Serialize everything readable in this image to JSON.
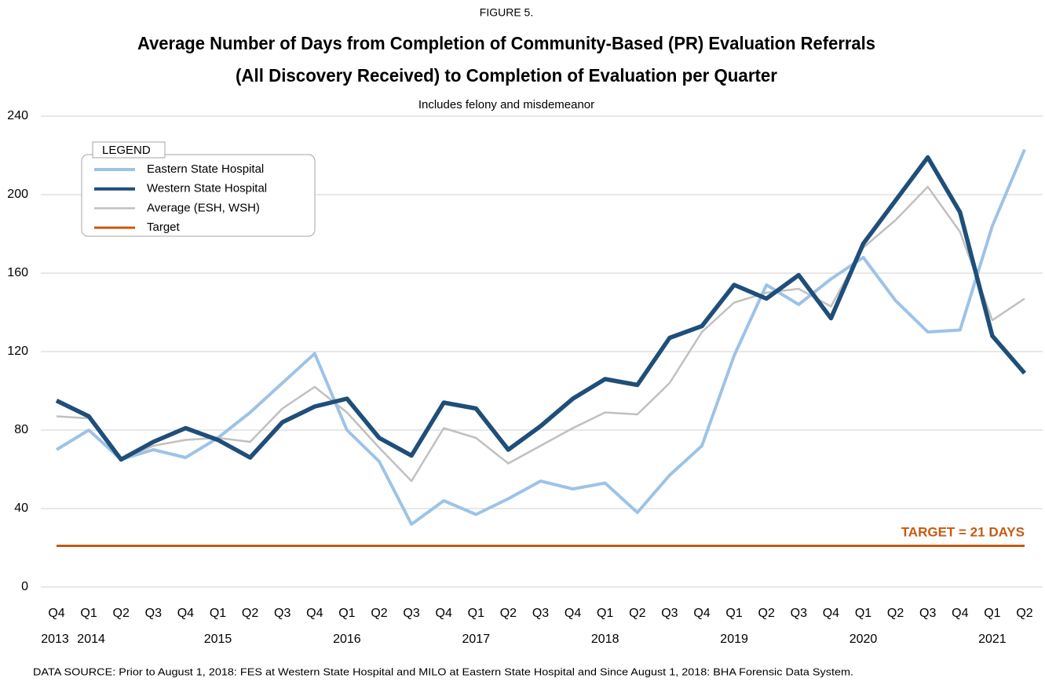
{
  "chart_data": {
    "type": "line",
    "figure_label": "FIGURE 5.",
    "title_lines": [
      "Average Number of Days from Completion of Community-Based (PR) Evaluation Referrals",
      "(All Discovery Received) to Completion of Evaluation  per  Quarter"
    ],
    "subtitle": "Includes felony and misdemeanor",
    "categories": [
      "Q4",
      "Q1",
      "Q2",
      "Q3",
      "Q4",
      "Q1",
      "Q2",
      "Q3",
      "Q4",
      "Q1",
      "Q2",
      "Q3",
      "Q4",
      "Q1",
      "Q2",
      "Q3",
      "Q4",
      "Q1",
      "Q2",
      "Q3",
      "Q4",
      "Q1",
      "Q2",
      "Q3",
      "Q4",
      "Q1",
      "Q2",
      "Q3",
      "Q4",
      "Q1",
      "Q2"
    ],
    "category_groups": [
      "2013",
      "2014",
      null,
      null,
      null,
      "2015",
      null,
      null,
      null,
      "2016",
      null,
      null,
      null,
      "2017",
      null,
      null,
      null,
      "2018",
      null,
      null,
      null,
      "2019",
      null,
      null,
      null,
      "2020",
      null,
      null,
      null,
      "2021",
      null
    ],
    "series": [
      {
        "name": "Eastern State Hospital",
        "color": "#9dc3e6",
        "values": [
          70,
          80,
          65,
          70,
          66,
          76,
          89,
          104,
          119,
          80,
          64,
          32,
          44,
          37,
          45,
          54,
          50,
          53,
          38,
          57,
          72,
          118,
          154,
          144,
          157,
          168,
          146,
          130,
          131,
          184,
          223
        ]
      },
      {
        "name": "Western State Hospital",
        "color": "#1f4e79",
        "values": [
          95,
          87,
          65,
          74,
          81,
          75,
          66,
          84,
          92,
          96,
          76,
          67,
          94,
          91,
          70,
          82,
          96,
          106,
          103,
          127,
          133,
          154,
          147,
          159,
          137,
          175,
          197,
          219,
          191,
          128,
          109
        ]
      },
      {
        "name": "Average (ESH, WSH)",
        "color": "#c0c0c0",
        "values": [
          87,
          86,
          65,
          72,
          75,
          76,
          74,
          91,
          102,
          89,
          71,
          54,
          81,
          76,
          63,
          72,
          81,
          89,
          88,
          104,
          130,
          145,
          150,
          152,
          143,
          173,
          187,
          204,
          181,
          136,
          147
        ]
      },
      {
        "name": "Target",
        "color": "#c55a11",
        "values": [
          21,
          21,
          21,
          21,
          21,
          21,
          21,
          21,
          21,
          21,
          21,
          21,
          21,
          21,
          21,
          21,
          21,
          21,
          21,
          21,
          21,
          21,
          21,
          21,
          21,
          21,
          21,
          21,
          21,
          21,
          21
        ]
      }
    ],
    "legend_title": "LEGEND",
    "legend_position": "upper left",
    "annotation": "TARGET = 21 DAYS",
    "ylim": [
      0,
      240
    ],
    "yticks": [
      0,
      40,
      80,
      120,
      160,
      200,
      240
    ],
    "grid": true,
    "source": "DATA SOURCE: Prior to August 1, 2018: FES at Western State Hospital and MILO at Eastern State Hospital and Since August 1, 2018: BHA Forensic Data System."
  }
}
